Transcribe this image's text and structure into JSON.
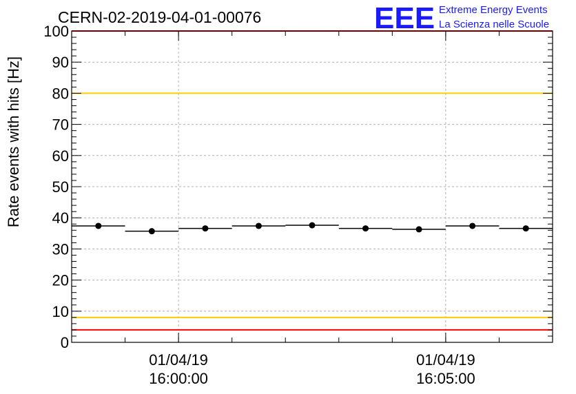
{
  "chart_data": {
    "type": "scatter",
    "title": "CERN-02-2019-04-01-00076",
    "ylabel": "Rate events with hits [Hz]",
    "xlabel": "",
    "ylim": [
      0,
      100
    ],
    "y_ticks": [
      0,
      10,
      20,
      30,
      40,
      50,
      60,
      70,
      80,
      90,
      100
    ],
    "x_range": [
      "15:58:00",
      "16:07:00"
    ],
    "x_ticks": [
      {
        "time": "16:00:00",
        "date_label": "01/04/19",
        "time_label": "16:00:00"
      },
      {
        "time": "16:05:00",
        "date_label": "01/04/19",
        "time_label": "16:05:00"
      }
    ],
    "grid": true,
    "series": [
      {
        "points": [
          {
            "x_start": "15:58:00",
            "x_end": "15:59:00",
            "x": "15:58:30",
            "y": 37.4
          },
          {
            "x_start": "15:59:00",
            "x_end": "16:00:00",
            "x": "15:59:30",
            "y": 35.7
          },
          {
            "x_start": "16:00:00",
            "x_end": "16:01:00",
            "x": "16:00:30",
            "y": 36.6
          },
          {
            "x_start": "16:01:00",
            "x_end": "16:02:00",
            "x": "16:01:30",
            "y": 37.4
          },
          {
            "x_start": "16:02:00",
            "x_end": "16:03:00",
            "x": "16:02:30",
            "y": 37.6
          },
          {
            "x_start": "16:03:00",
            "x_end": "16:04:00",
            "x": "16:03:30",
            "y": 36.6
          },
          {
            "x_start": "16:04:00",
            "x_end": "16:05:00",
            "x": "16:04:30",
            "y": 36.3
          },
          {
            "x_start": "16:05:00",
            "x_end": "16:06:00",
            "x": "16:05:30",
            "y": 37.4
          },
          {
            "x_start": "16:06:00",
            "x_end": "16:07:00",
            "x": "16:06:30",
            "y": 36.6
          }
        ]
      }
    ],
    "reference_lines": [
      {
        "y": 100,
        "color": "#ff0000"
      },
      {
        "y": 80,
        "color": "#ffcc00"
      },
      {
        "y": 8,
        "color": "#ffcc00"
      },
      {
        "y": 4,
        "color": "#ff0000"
      }
    ]
  },
  "logo": {
    "mark": "EEE",
    "line1": "Extreme Energy Events",
    "line2": "La Scienza nelle Scuole",
    "color": "#1a1aff"
  }
}
